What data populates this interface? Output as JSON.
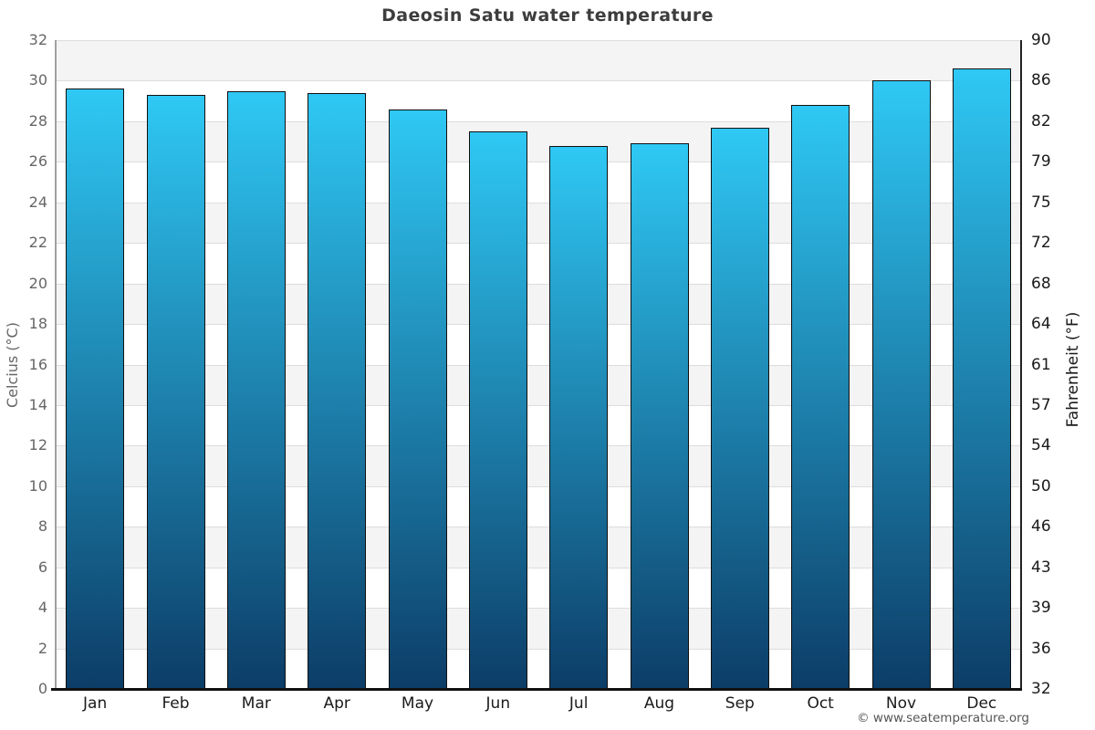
{
  "page": {
    "title": "Daeosin Satu water temperature",
    "copyright": "© www.seatemperature.org"
  },
  "axes": {
    "left_title": "Celcius (°C)",
    "right_title": "Fahrenheit (°F)"
  },
  "chart_data": {
    "type": "bar",
    "title": "Daeosin Satu water temperature",
    "categories": [
      "Jan",
      "Feb",
      "Mar",
      "Apr",
      "May",
      "Jun",
      "Jul",
      "Aug",
      "Sep",
      "Oct",
      "Nov",
      "Dec"
    ],
    "values": [
      29.6,
      29.3,
      29.5,
      29.4,
      28.6,
      27.5,
      26.8,
      26.9,
      27.7,
      28.8,
      30.0,
      30.6
    ],
    "series_name": "Water temperature (°C)",
    "xlabel": "",
    "ylabel_left": "Celcius (°C)",
    "ylabel_right": "Fahrenheit (°F)",
    "ylim": [
      0,
      32
    ],
    "ytick_step_celsius": 2,
    "yticks_celsius": [
      32,
      30,
      28,
      26,
      24,
      22,
      20,
      18,
      16,
      14,
      12,
      10,
      8,
      6,
      4,
      2,
      0
    ],
    "yticks_fahrenheit": [
      90,
      86,
      82,
      79,
      75,
      72,
      68,
      64,
      61,
      57,
      54,
      50,
      46,
      43,
      39,
      36,
      32
    ],
    "legend": "none",
    "grid": "alternating-horizontal-bands",
    "colors": {
      "bar_gradient_top": "#2fc8f4",
      "bar_gradient_bottom": "#0c3d67",
      "bar_border": "#101010",
      "band_gray": "#f4f4f4",
      "band_white": "#ffffff",
      "gridline": "#dddddd",
      "axis_left_line": "#a0a0a0",
      "axis_right_line": "#222222",
      "axis_bottom_line": "#111111",
      "title_color": "#3d3d3d",
      "tick_left_color": "#666666",
      "tick_right_color": "#1a1a1a"
    }
  }
}
